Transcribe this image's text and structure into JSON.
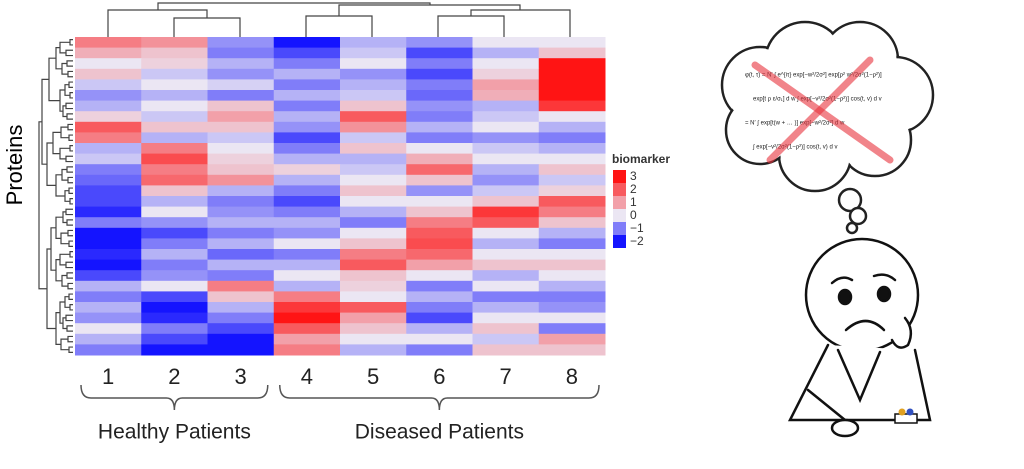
{
  "chart_data": {
    "type": "heatmap",
    "y_label": "Proteins",
    "categories": [
      "1",
      "2",
      "3",
      "4",
      "5",
      "6",
      "7",
      "8"
    ],
    "groups": [
      {
        "label": "Healthy Patients",
        "count": 3
      },
      {
        "label": "Diseased Patients",
        "count": 5
      }
    ],
    "z": [
      [
        1.5,
        1.2,
        -0.8,
        -2,
        -0.5,
        -0.8,
        0,
        0
      ],
      [
        0.8,
        0.5,
        -1,
        -1.5,
        -0.3,
        -1.5,
        -0.5,
        0.5
      ],
      [
        0,
        0.3,
        -0.5,
        -1,
        0,
        -1,
        0,
        3
      ],
      [
        0.5,
        -0.3,
        -0.8,
        -0.5,
        -0.8,
        -1.5,
        0.3,
        3
      ],
      [
        -0.3,
        0,
        -0.2,
        -1,
        -0.5,
        -1,
        1,
        3
      ],
      [
        -0.8,
        -0.5,
        -1,
        -0.5,
        -0.3,
        -1.2,
        0.8,
        3
      ],
      [
        -0.5,
        0,
        0.5,
        -1,
        0.5,
        -0.8,
        -0.5,
        2.5
      ],
      [
        0.3,
        -0.3,
        1,
        -0.5,
        2,
        -1,
        -0.3,
        0
      ],
      [
        2,
        0.5,
        0.5,
        -0.8,
        1.2,
        -0.5,
        0,
        -0.5
      ],
      [
        1.5,
        -0.5,
        -0.3,
        -1.5,
        -0.3,
        -1,
        -0.8,
        -1
      ],
      [
        -0.5,
        1.5,
        0,
        -1,
        0.5,
        0,
        -0.3,
        -0.5
      ],
      [
        -0.3,
        2.2,
        0.3,
        -0.5,
        -0.5,
        0.8,
        0,
        0
      ],
      [
        -1,
        1.5,
        0.5,
        0.3,
        -0.3,
        1.8,
        -0.5,
        0.5
      ],
      [
        -1.2,
        1.8,
        1.2,
        -0.5,
        0,
        0.5,
        -0.8,
        -0.3
      ],
      [
        -1.5,
        0.5,
        -0.5,
        -1,
        0.5,
        -0.8,
        -0.3,
        0.3
      ],
      [
        -1.5,
        -0.5,
        -1,
        -1.5,
        0,
        0,
        0.5,
        2
      ],
      [
        -1.8,
        0,
        -0.8,
        -1,
        -0.5,
        0.5,
        2.5,
        1.5
      ],
      [
        -1,
        -0.8,
        -0.5,
        -0.5,
        -1,
        1.5,
        2,
        0.5
      ],
      [
        -2,
        -1.5,
        -1,
        -0.8,
        0,
        2,
        0,
        -0.5
      ],
      [
        -2,
        -1,
        -0.5,
        0,
        0.5,
        2.2,
        -0.5,
        -1
      ],
      [
        -1.8,
        -0.5,
        -1.2,
        -1,
        1.5,
        1.8,
        0,
        0
      ],
      [
        -2,
        -1,
        -0.5,
        -0.5,
        2,
        1,
        0.5,
        0.5
      ],
      [
        -1.5,
        -0.8,
        -1,
        0,
        0.5,
        0,
        -0.5,
        0
      ],
      [
        -0.5,
        0,
        1.5,
        -0.5,
        0.3,
        -1,
        0,
        -0.5
      ],
      [
        -1,
        -1.5,
        0.5,
        1.5,
        0,
        -0.5,
        -1,
        -1
      ],
      [
        -0.5,
        -2,
        -0.5,
        2.5,
        2,
        -1,
        -0.5,
        -0.8
      ],
      [
        -0.8,
        -1.8,
        -1,
        3,
        1,
        -1.5,
        0,
        0
      ],
      [
        0,
        -1,
        -1.5,
        2,
        0.5,
        -0.5,
        0.5,
        -1
      ],
      [
        -0.5,
        -1.5,
        -2,
        1,
        0,
        0,
        -0.3,
        1
      ],
      [
        -1,
        -2,
        -2,
        1.5,
        -0.5,
        -1,
        0.5,
        0.5
      ]
    ],
    "zlim": [
      -2,
      3
    ],
    "colors": {
      "low": "#1414ff",
      "mid": "#ebe6f3",
      "high": "#ff1414"
    },
    "legend_title": "biomarker",
    "legend_ticks": [
      3,
      2,
      1,
      0,
      {
        "value": -1,
        "label": "−1"
      },
      {
        "value": -2,
        "label": "−2"
      }
    ],
    "thought_bubble": [
      "φ(t, τ) = N′ ∫ e^{iτ} exp[−w²/2σ²] exp[ρ² w²/2σ²(1−ρ²)]",
      "exp[t ρ ε/σ₁] d w ∫ exp[−v²/2σ²(1−ρ²)] cos(t, v) d v",
      "= N′ ∫ exp[t(w + … )] exp[−w²/2σ²] d w",
      "∫ exp[−v²/2σ²(1−ρ²)] cos(t, v) d v"
    ]
  }
}
